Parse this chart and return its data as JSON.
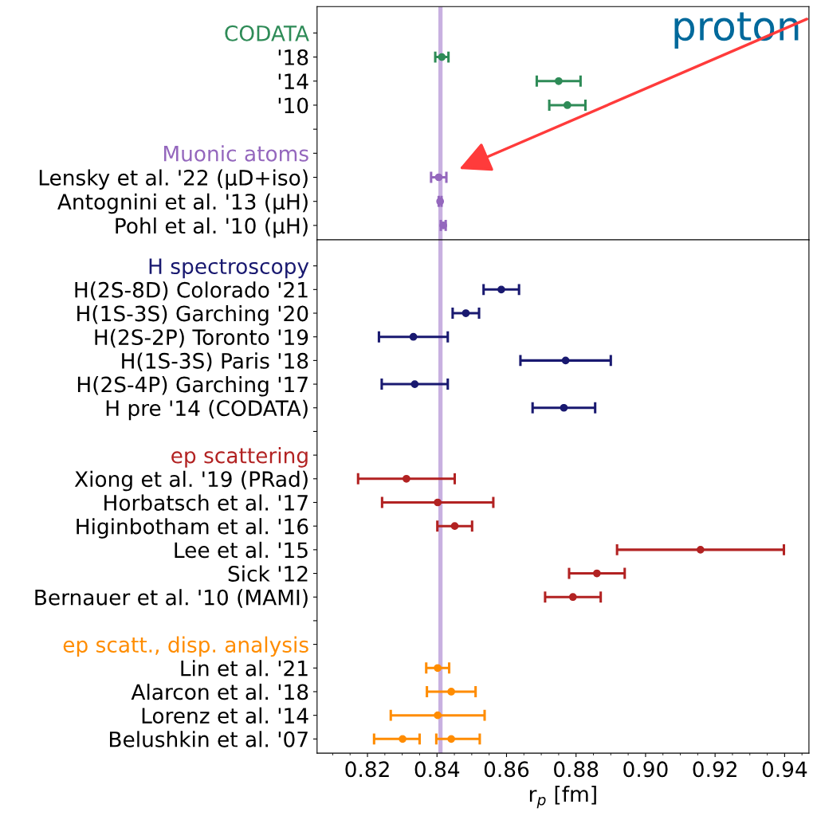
{
  "chart_data": [
    {
      "type": "scatter",
      "orientation": "horizontal",
      "tick_labels": "y",
      "marker": "circle",
      "categories": [
        "CODATA",
        "'18",
        "'14",
        "'10",
        null,
        "Muonic atoms",
        "Lensky et al. '22 (μD+iso)",
        "Antognini et al. '13 (μH)",
        "Pohl et al. '10 (μH)"
      ],
      "series": [
        {
          "color": "#2e8b57",
          "values": [
            null,
            0.8414,
            0.875,
            0.8775,
            null,
            null,
            null,
            null,
            null
          ],
          "errors": [
            null,
            0.0019,
            0.0063,
            0.0052,
            null,
            null,
            null,
            null,
            null
          ]
        },
        {
          "color": "#9467bd",
          "values": [
            null,
            null,
            null,
            null,
            null,
            null,
            0.8405,
            0.8409,
            0.8418
          ],
          "errors": [
            null,
            null,
            null,
            null,
            null,
            null,
            0.0022,
            0.0004,
            0.0007
          ]
        }
      ],
      "xlim": [
        0.8055,
        0.947
      ],
      "xticks": [
        0.82,
        0.84,
        0.86,
        0.88,
        0.9,
        0.92,
        0.94
      ],
      "bands": [
        {
          "axis": "x",
          "from": 0.8404,
          "to": 0.8416,
          "color": "#c8b0e0"
        }
      ],
      "annotations": [
        "proton"
      ]
    },
    {
      "type": "scatter",
      "orientation": "horizontal",
      "marker": "circle",
      "categories": [
        "H spectroscopy",
        "H(2S-8D) Colorado '21",
        "H(1S-3S) Garching '20",
        "H(2S-2P) Toronto '19",
        "H(1S-3S) Paris '18",
        "H(2S-4P) Garching '17",
        "H pre '14 (CODATA)",
        null,
        "ep scattering",
        "Xiong et al. '19 (PRad)",
        "Horbatsch et al. '17",
        "Higinbotham et al. '16",
        "Lee et al. '15",
        "Sick '12",
        "Bernauer et al. '10 (MAMI)",
        null,
        "ep scatt., disp. analysis",
        "Lin et al. '21",
        "Alarcon et al. '18",
        "Lorenz et al. '14",
        "Belushkin et al. '07"
      ],
      "series": [
        {
          "color": "#191970",
          "values": [
            null,
            0.8585,
            0.8483,
            0.8332,
            0.877,
            0.8336,
            0.8765,
            null,
            null,
            null,
            null,
            null,
            null,
            null,
            null,
            null,
            null,
            null,
            null,
            null,
            null
          ],
          "errors": [
            null,
            0.0051,
            0.0038,
            0.0099,
            0.013,
            0.0095,
            0.009,
            null,
            null,
            null,
            null,
            null,
            null,
            null,
            null,
            null,
            null,
            null,
            null,
            null,
            null
          ]
        },
        {
          "color": "#b22222",
          "values": [
            null,
            null,
            null,
            null,
            null,
            null,
            null,
            null,
            null,
            0.8312,
            0.8402,
            0.8451,
            0.9158,
            0.886,
            0.8791,
            null,
            null,
            null,
            null,
            null,
            null
          ],
          "errors": [
            null,
            null,
            null,
            null,
            null,
            null,
            null,
            null,
            null,
            0.0139,
            0.016,
            0.005,
            0.024,
            0.008,
            0.008,
            null,
            null,
            null,
            null,
            null,
            null
          ]
        },
        {
          "color": "#ff8c00",
          "values": [
            null,
            null,
            null,
            null,
            null,
            null,
            null,
            null,
            null,
            null,
            null,
            null,
            null,
            null,
            null,
            null,
            null,
            0.8402,
            0.8441,
            0.8402,
            0.8301
          ],
          "errors": [
            null,
            null,
            null,
            null,
            null,
            null,
            null,
            null,
            null,
            null,
            null,
            null,
            null,
            null,
            null,
            null,
            null,
            0.0033,
            0.007,
            0.0135,
            [
              0.8219,
              0.835
            ]
          ]
        },
        {
          "color": "#ff8c00",
          "values": [
            null,
            null,
            null,
            null,
            null,
            null,
            null,
            null,
            null,
            null,
            null,
            null,
            null,
            null,
            null,
            null,
            null,
            null,
            null,
            null,
            0.8441
          ],
          "errors": [
            null,
            null,
            null,
            null,
            null,
            null,
            null,
            null,
            null,
            null,
            null,
            null,
            null,
            null,
            null,
            null,
            null,
            null,
            null,
            null,
            [
              0.8398,
              0.8523
            ]
          ]
        }
      ],
      "xlim": [
        0.8055,
        0.947
      ],
      "xticks": [
        0.82,
        0.84,
        0.86,
        0.88,
        {
          "value": 0.9,
          "label": "0.90"
        },
        0.92,
        0.94
      ],
      "xlabel": "r$_{p}$ [fm]",
      "bands": [
        {
          "axis": "x",
          "from": 0.8404,
          "to": 0.8416,
          "color": "#c8b0e0"
        }
      ]
    }
  ]
}
